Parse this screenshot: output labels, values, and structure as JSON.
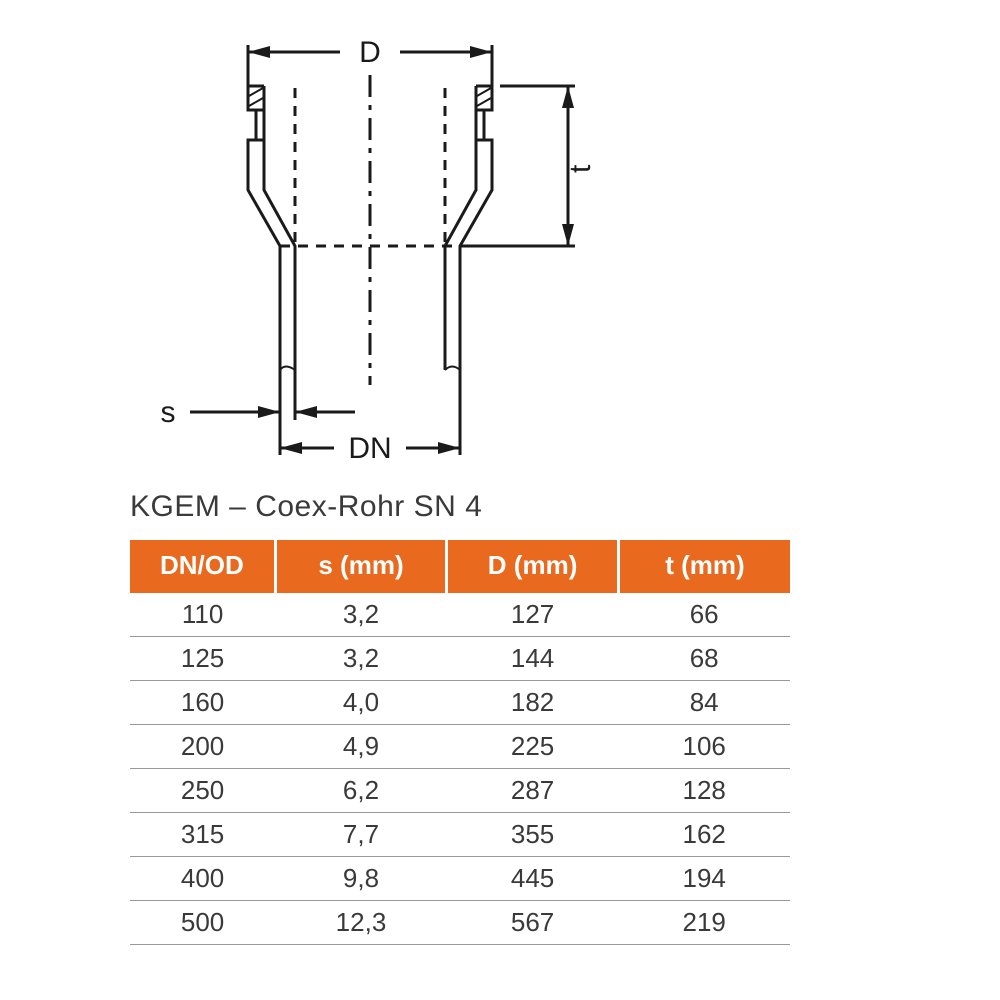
{
  "diagram": {
    "labels": {
      "D": "D",
      "t": "t",
      "s": "s",
      "DN": "DN"
    },
    "stroke": "#1a1a1a",
    "stroke_width": 3,
    "font_size": 30
  },
  "table": {
    "title": "KGEM – Coex-Rohr SN 4",
    "header_bg": "#e96a1f",
    "header_fg": "#ffffff",
    "row_border": "#9a9a9a",
    "text_color": "#3a3a3a",
    "font_size": 26,
    "columns": [
      "DN/OD",
      "s (mm)",
      "D (mm)",
      "t (mm)"
    ],
    "col_widths_pct": [
      22,
      26,
      26,
      26
    ],
    "rows": [
      [
        "110",
        "3,2",
        "127",
        "66"
      ],
      [
        "125",
        "3,2",
        "144",
        "68"
      ],
      [
        "160",
        "4,0",
        "182",
        "84"
      ],
      [
        "200",
        "4,9",
        "225",
        "106"
      ],
      [
        "250",
        "6,2",
        "287",
        "128"
      ],
      [
        "315",
        "7,7",
        "355",
        "162"
      ],
      [
        "400",
        "9,8",
        "445",
        "194"
      ],
      [
        "500",
        "12,3",
        "567",
        "219"
      ]
    ]
  }
}
